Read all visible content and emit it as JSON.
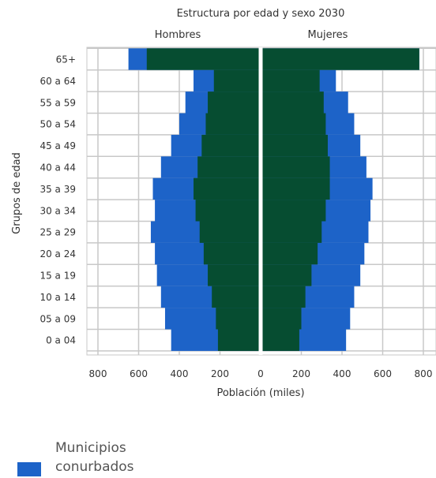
{
  "chart_data": {
    "type": "bar",
    "orientation": "horizontal",
    "title": "Estructura por edad y sexo 2030",
    "left_label": "Hombres",
    "right_label": "Mujeres",
    "ylabel": "Grupos de edad",
    "xlabel": "Población (miles)",
    "x_ticks": [
      "800",
      "600",
      "400",
      "200",
      "0",
      "200",
      "400",
      "600",
      "800"
    ],
    "xlim": [
      -800,
      800
    ],
    "grid": true,
    "categories": [
      "65+",
      "60 a 64",
      "55 a 59",
      "50 a 54",
      "45 a 49",
      "40 a 44",
      "35 a 39",
      "30 a 34",
      "25 a 29",
      "20 a 24",
      "15 a 19",
      "10 a 14",
      "05 a 09",
      "0 a 04"
    ],
    "series": [
      {
        "name": "Municipios conurbados",
        "color": "#1d63c8",
        "hombres": [
          650,
          330,
          370,
          400,
          440,
          490,
          530,
          520,
          540,
          520,
          510,
          490,
          470,
          440
        ],
        "mujeres": [
          780,
          370,
          430,
          460,
          490,
          520,
          550,
          540,
          530,
          510,
          490,
          460,
          440,
          420
        ]
      },
      {
        "color": "#064d31",
        "hombres": [
          560,
          230,
          260,
          270,
          290,
          310,
          330,
          320,
          300,
          280,
          260,
          240,
          220,
          210
        ],
        "mujeres": [
          780,
          290,
          310,
          320,
          330,
          340,
          340,
          320,
          300,
          280,
          250,
          220,
          200,
          190
        ]
      }
    ],
    "legend": {
      "position": "bottom-left",
      "entries": [
        {
          "label": "Municipios conurbados",
          "color": "#1d63c8"
        }
      ]
    }
  }
}
